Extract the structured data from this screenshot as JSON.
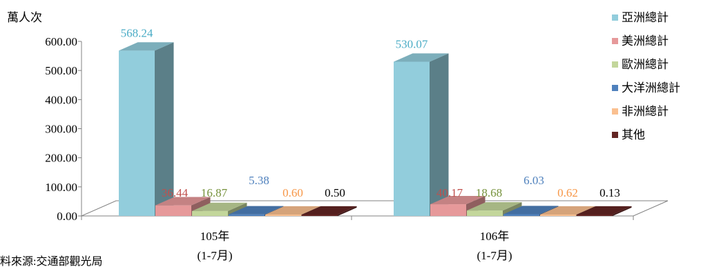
{
  "chart_data": {
    "type": "bar",
    "unit_label": "萬人次",
    "categories": [
      "105年",
      "106年"
    ],
    "category_sublabels": [
      "(1-7月)",
      "(1-7月)"
    ],
    "ylim": [
      0,
      600
    ],
    "yticks": [
      "0.00",
      "100.00",
      "200.00",
      "300.00",
      "400.00",
      "500.00",
      "600.00"
    ],
    "series": [
      {
        "name": "亞洲總計",
        "color": "#92CDDC",
        "label_color": "#4BACC6",
        "values": [
          568.24,
          530.07
        ],
        "labels": [
          "568.24",
          "530.07"
        ]
      },
      {
        "name": "美洲總計",
        "color": "#E6999A",
        "label_color": "#C0504D",
        "values": [
          36.44,
          40.17
        ],
        "labels": [
          "36.44",
          "40.17"
        ]
      },
      {
        "name": "歐洲總計",
        "color": "#C3D69B",
        "label_color": "#76923C",
        "values": [
          16.87,
          18.68
        ],
        "labels": [
          "16.87",
          "18.68"
        ]
      },
      {
        "name": "大洋洲總計",
        "color": "#4F81BD",
        "label_color": "#4F81BD",
        "values": [
          5.38,
          6.03
        ],
        "labels": [
          "5.38",
          "6.03"
        ]
      },
      {
        "name": "非洲總計",
        "color": "#FAC090",
        "label_color": "#F79646",
        "values": [
          0.6,
          0.62
        ],
        "labels": [
          "0.60",
          "0.62"
        ]
      },
      {
        "name": "其他",
        "color": "#632523",
        "label_color": "#000000",
        "values": [
          0.5,
          0.13
        ],
        "labels": [
          "0.50",
          "0.13"
        ]
      }
    ],
    "legend_position": "right",
    "grid": false
  },
  "source_note": "資料來源:交通部觀光局"
}
